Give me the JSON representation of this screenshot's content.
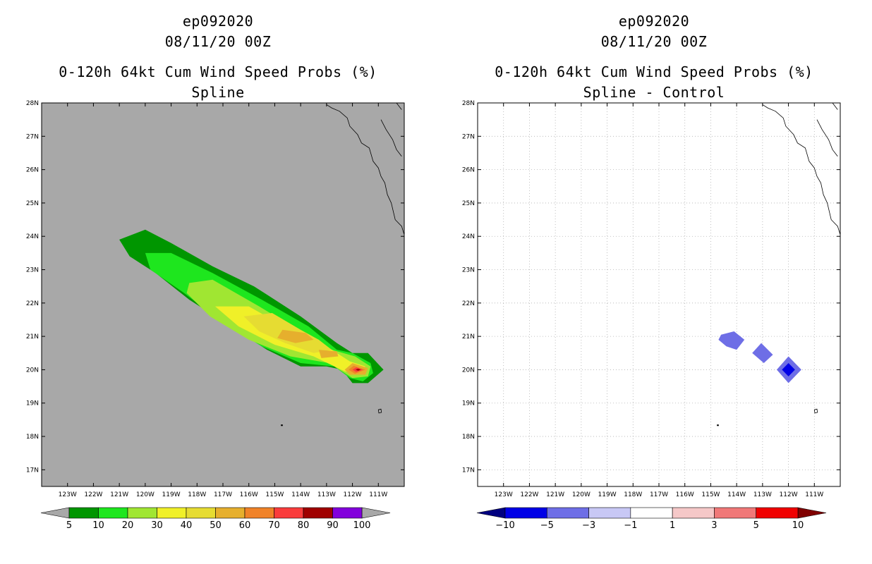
{
  "left": {
    "storm": "ep092020",
    "date": "08/11/20 00Z",
    "title": "0-120h 64kt Cum Wind Speed Probs (%)",
    "subtitle": "Spline"
  },
  "right": {
    "storm": "ep092020",
    "date": "08/11/20 00Z",
    "title": "0-120h 64kt Cum Wind Speed Probs (%)",
    "subtitle": "Spline - Control"
  },
  "chart_data": [
    {
      "type": "heatmap",
      "title": "0-120h 64kt Cum Wind Speed Probs (%)",
      "subtitle": "Spline",
      "xlim": [
        -124,
        -110
      ],
      "ylim": [
        16.5,
        28
      ],
      "xticks": [
        -123,
        -122,
        -121,
        -120,
        -119,
        -118,
        -117,
        -116,
        -115,
        -114,
        -113,
        -112,
        -111
      ],
      "xtick_labels": [
        "123W",
        "122W",
        "121W",
        "120W",
        "119W",
        "118W",
        "117W",
        "116W",
        "115W",
        "114W",
        "113W",
        "112W",
        "111W"
      ],
      "yticks": [
        17,
        18,
        19,
        20,
        21,
        22,
        23,
        24,
        25,
        26,
        27,
        28
      ],
      "ytick_labels": [
        "17N",
        "18N",
        "19N",
        "20N",
        "21N",
        "22N",
        "23N",
        "24N",
        "25N",
        "26N",
        "27N",
        "28N"
      ],
      "background": "#a8a8a8",
      "colorbar": {
        "levels": [
          5,
          10,
          20,
          30,
          40,
          50,
          60,
          70,
          80,
          90,
          100
        ],
        "colors": [
          "#009600",
          "#1ee61e",
          "#a0e632",
          "#f0f028",
          "#e6dc32",
          "#e6af2d",
          "#f08228",
          "#fa3c3c",
          "#a00000",
          "#8200dc"
        ],
        "under": "#a8a8a8",
        "over": "#a8a8a8"
      },
      "regions": [
        {
          "level": 5,
          "points": [
            [
              -121,
              23.9
            ],
            [
              -120,
              24.2
            ],
            [
              -119,
              23.8
            ],
            [
              -117.4,
              23.1
            ],
            [
              -115.8,
              22.5
            ],
            [
              -114,
              21.6
            ],
            [
              -112.6,
              20.8
            ],
            [
              -112,
              20.5
            ],
            [
              -111.4,
              20.5
            ],
            [
              -110.8,
              20
            ],
            [
              -111.4,
              19.6
            ],
            [
              -112,
              19.6
            ],
            [
              -112.4,
              20
            ],
            [
              -113,
              20.1
            ],
            [
              -114,
              20.1
            ],
            [
              -115.3,
              20.6
            ],
            [
              -116.7,
              21.3
            ],
            [
              -118.3,
              22.1
            ],
            [
              -119.6,
              22.9
            ],
            [
              -120.6,
              23.4
            ]
          ]
        },
        {
          "level": 10,
          "points": [
            [
              -120,
              23.5
            ],
            [
              -119,
              23.5
            ],
            [
              -117.4,
              22.9
            ],
            [
              -115.5,
              22.1
            ],
            [
              -113.7,
              21.3
            ],
            [
              -112.6,
              20.6
            ],
            [
              -112,
              20.5
            ],
            [
              -111.3,
              20.2
            ],
            [
              -111.2,
              19.9
            ],
            [
              -111.6,
              19.65
            ],
            [
              -112.1,
              19.75
            ],
            [
              -112.7,
              20.1
            ],
            [
              -114,
              20.2
            ],
            [
              -115.5,
              20.7
            ],
            [
              -117,
              21.4
            ],
            [
              -118.5,
              22.3
            ],
            [
              -119.8,
              23
            ]
          ]
        },
        {
          "level": 20,
          "points": [
            [
              -118.3,
              22.6
            ],
            [
              -117.4,
              22.7
            ],
            [
              -115.6,
              21.9
            ],
            [
              -113.9,
              21.1
            ],
            [
              -112.8,
              20.6
            ],
            [
              -111.9,
              20.4
            ],
            [
              -111.3,
              20.1
            ],
            [
              -111.4,
              19.8
            ],
            [
              -112,
              19.75
            ],
            [
              -112.9,
              20.2
            ],
            [
              -114.4,
              20.4
            ],
            [
              -116,
              20.9
            ],
            [
              -117.5,
              21.6
            ],
            [
              -118.4,
              22.3
            ]
          ]
        },
        {
          "level": 30,
          "points": [
            [
              -117.3,
              21.9
            ],
            [
              -116,
              21.9
            ],
            [
              -114.4,
              21.2
            ],
            [
              -113,
              20.7
            ],
            [
              -112.1,
              20.25
            ],
            [
              -111.5,
              20.1
            ],
            [
              -111.7,
              19.85
            ],
            [
              -112.3,
              19.95
            ],
            [
              -113.5,
              20.4
            ],
            [
              -115,
              20.75
            ],
            [
              -116.4,
              21.3
            ]
          ]
        },
        {
          "level": 40,
          "points": [
            [
              -116.2,
              21.6
            ],
            [
              -115.1,
              21.7
            ],
            [
              -114,
              21.2
            ],
            [
              -113.3,
              20.9
            ],
            [
              -112.8,
              20.6
            ],
            [
              -113.5,
              20.5
            ],
            [
              -114.6,
              20.8
            ],
            [
              -115.6,
              21.15
            ]
          ]
        },
        {
          "level": 50,
          "points": [
            [
              -114.7,
              21.2
            ],
            [
              -113.8,
              21.1
            ],
            [
              -113.5,
              20.9
            ],
            [
              -114.2,
              20.8
            ],
            [
              -114.9,
              20.95
            ]
          ]
        },
        {
          "level": 50,
          "points": [
            [
              -113.3,
              20.6
            ],
            [
              -112.6,
              20.55
            ],
            [
              -112.55,
              20.4
            ],
            [
              -113.2,
              20.35
            ]
          ]
        },
        {
          "level": 50,
          "points": [
            [
              -112,
              20.2
            ],
            [
              -111.4,
              20.05
            ],
            [
              -111.5,
              19.85
            ],
            [
              -112.1,
              19.85
            ],
            [
              -112.3,
              20
            ]
          ]
        },
        {
          "level": 60,
          "points": [
            [
              -111.95,
              20.12
            ],
            [
              -111.5,
              20.0
            ],
            [
              -111.9,
              19.88
            ],
            [
              -112.15,
              20.0
            ]
          ]
        },
        {
          "level": 70,
          "points": [
            [
              -111.85,
              20.07
            ],
            [
              -111.6,
              20.0
            ],
            [
              -111.85,
              19.93
            ],
            [
              -112.0,
              20.0
            ]
          ]
        },
        {
          "level": 80,
          "points": [
            [
              -111.78,
              20.03
            ],
            [
              -111.68,
              20.0
            ],
            [
              -111.78,
              19.97
            ],
            [
              -111.88,
              20.0
            ]
          ]
        }
      ]
    },
    {
      "type": "heatmap",
      "title": "0-120h 64kt Cum Wind Speed Probs (%)",
      "subtitle": "Spline - Control",
      "xlim": [
        -124,
        -110
      ],
      "ylim": [
        16.5,
        28
      ],
      "xticks": [
        -123,
        -122,
        -121,
        -120,
        -119,
        -118,
        -117,
        -116,
        -115,
        -114,
        -113,
        -112,
        -111
      ],
      "xtick_labels": [
        "123W",
        "122W",
        "121W",
        "120W",
        "119W",
        "118W",
        "117W",
        "116W",
        "115W",
        "114W",
        "113W",
        "112W",
        "111W"
      ],
      "yticks": [
        17,
        18,
        19,
        20,
        21,
        22,
        23,
        24,
        25,
        26,
        27,
        28
      ],
      "ytick_labels": [
        "17N",
        "18N",
        "19N",
        "20N",
        "21N",
        "22N",
        "23N",
        "24N",
        "25N",
        "26N",
        "27N",
        "28N"
      ],
      "grid": true,
      "background": "#ffffff",
      "colorbar": {
        "levels": [
          -10,
          -5,
          -3,
          -1,
          1,
          3,
          5,
          10
        ],
        "colors": [
          "#0000e6",
          "#6e6ee6",
          "#c8c8f5",
          "#ffffff",
          "#f5c8c8",
          "#f07878",
          "#f00000"
        ],
        "under": "#000080",
        "over": "#800000"
      },
      "regions": [
        {
          "level": -3,
          "points": [
            [
              -114.6,
              21.05
            ],
            [
              -114.1,
              21.15
            ],
            [
              -113.7,
              20.9
            ],
            [
              -114.0,
              20.6
            ],
            [
              -114.4,
              20.7
            ],
            [
              -114.7,
              20.9
            ]
          ]
        },
        {
          "level": -3,
          "points": [
            [
              -113.05,
              20.8
            ],
            [
              -112.6,
              20.45
            ],
            [
              -112.95,
              20.2
            ],
            [
              -113.4,
              20.5
            ]
          ]
        },
        {
          "level": -3,
          "points": [
            [
              -112.0,
              20.4
            ],
            [
              -111.5,
              20.0
            ],
            [
              -112.0,
              19.6
            ],
            [
              -112.45,
              20.0
            ]
          ]
        },
        {
          "level": -5,
          "points": [
            [
              -112.0,
              20.2
            ],
            [
              -111.75,
              20.0
            ],
            [
              -112.0,
              19.8
            ],
            [
              -112.25,
              20.0
            ]
          ]
        },
        {
          "level": -10,
          "points": [
            [
              -112.0,
              20.08
            ],
            [
              -111.9,
              20.0
            ],
            [
              -112.0,
              19.92
            ],
            [
              -112.1,
              20.0
            ]
          ]
        }
      ]
    }
  ]
}
